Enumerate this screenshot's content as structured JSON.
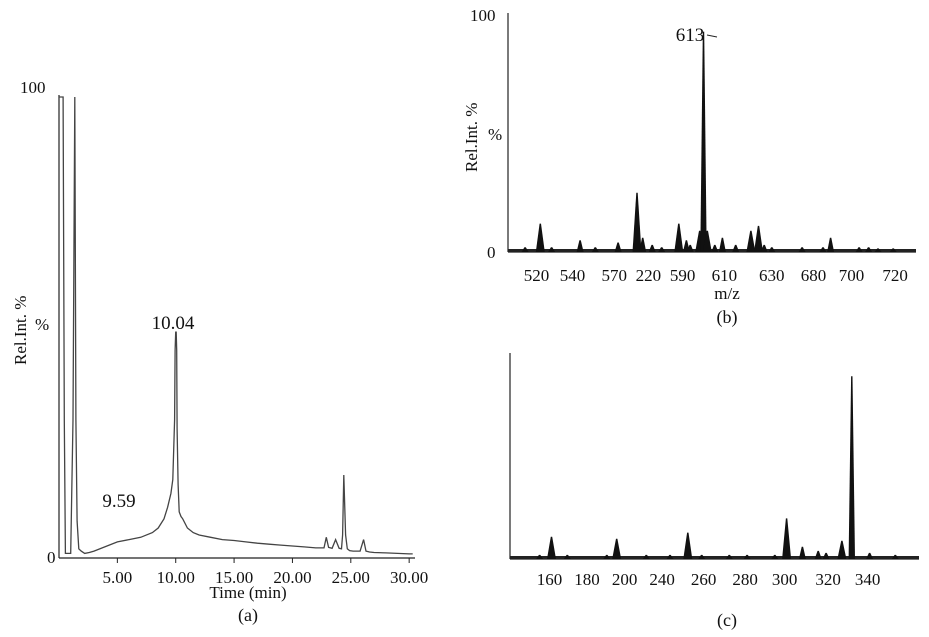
{
  "chart_data": [
    {
      "panel": "(a)",
      "type": "line",
      "xlabel": "Time (min)",
      "ylabel": "Rel.Int. %",
      "y_top_label": "100",
      "y_mid_label": "%",
      "y_zero_label": "0",
      "xlim": [
        0.0,
        30.5
      ],
      "ylim": [
        0,
        100
      ],
      "x_ticks": [
        "5.00",
        "10.00",
        "15.00",
        "20.00",
        "25.00",
        "30.00"
      ],
      "annotations": [
        {
          "text": "10.04",
          "x": 10.04,
          "y": 49
        },
        {
          "text": "9.59",
          "x": 9.59,
          "y": 14
        }
      ],
      "series": [
        {
          "x": [
            0.0,
            0.2,
            0.35,
            0.45,
            0.55,
            0.8,
            1.0,
            1.2,
            1.35,
            1.45,
            1.55,
            1.7,
            1.9,
            2.2,
            2.6,
            3.0,
            4.0,
            5.0,
            6.0,
            7.0,
            8.0,
            8.5,
            9.0,
            9.3,
            9.59,
            9.75,
            9.9,
            9.95,
            10.0,
            10.04,
            10.08,
            10.12,
            10.2,
            10.3,
            10.45,
            10.6,
            11.0,
            11.5,
            12.0,
            13.0,
            14.0,
            15.0,
            16.0,
            17.0,
            18.0,
            19.0,
            20.0,
            21.0,
            22.0,
            22.7,
            22.9,
            23.1,
            23.4,
            23.7,
            24.0,
            24.2,
            24.3,
            24.4,
            24.55,
            24.7,
            24.9,
            25.2,
            25.8,
            26.1,
            26.3,
            26.6,
            27.0,
            28.0,
            29.0,
            30.0,
            30.3
          ],
          "y": [
            100,
            100,
            100,
            30,
            1,
            1,
            1,
            30,
            100,
            30,
            8,
            2,
            1.5,
            1,
            1.2,
            1.5,
            2.5,
            3.5,
            4,
            4.5,
            5.5,
            6.5,
            8.5,
            11,
            14,
            17,
            30,
            45,
            49,
            49,
            45,
            28,
            16,
            10,
            9,
            8.5,
            6.5,
            5.5,
            5,
            4.5,
            4,
            3.8,
            3.5,
            3.2,
            3,
            2.8,
            2.6,
            2.4,
            2.2,
            2.2,
            4.5,
            2.3,
            2.1,
            4,
            2.1,
            2,
            5,
            18,
            5,
            2,
            1.6,
            1.5,
            1.5,
            4,
            1.5,
            1.3,
            1.2,
            1.1,
            1.0,
            0.9,
            0.9
          ]
        }
      ]
    },
    {
      "panel": "(b)",
      "type": "bar",
      "xlabel": "m/z",
      "ylabel": "Rel.Int. %",
      "y_top_label": "100",
      "y_mid_label": "%",
      "y_zero_label": "0",
      "ylim": [
        0,
        100
      ],
      "x_ticks": [
        "520",
        "540",
        "570",
        "220",
        "590",
        "610",
        "630",
        "680",
        "700",
        "720"
      ],
      "annotations": [
        {
          "text": "613",
          "x": 613,
          "y": 93
        }
      ],
      "peaks": {
        "x": [
          519,
          527,
          533,
          548,
          556,
          568,
          578,
          581,
          586,
          591,
          600,
          604,
          606,
          611,
          613,
          615,
          619,
          623,
          630,
          638,
          642,
          645,
          649,
          665,
          676,
          680,
          695,
          700,
          705,
          713
        ],
        "y": [
          2,
          12,
          2,
          5,
          2,
          4,
          25,
          6,
          3,
          2,
          12,
          5,
          3,
          9,
          93,
          9,
          3,
          6,
          3,
          9,
          11,
          3,
          2,
          2,
          2,
          6,
          2,
          2,
          1.5,
          1.5
        ]
      },
      "tick_axis_positions": [
        525,
        544,
        566,
        584,
        602,
        624,
        649,
        671,
        691,
        714
      ]
    },
    {
      "panel": "(c)",
      "type": "bar",
      "xlabel": "",
      "ylabel": "",
      "ylim": [
        0,
        100
      ],
      "x_ticks": [
        "160",
        "180",
        "200",
        "240",
        "260",
        "280",
        "300",
        "320",
        "340"
      ],
      "peaks": {
        "x": [
          160,
          166,
          174,
          194,
          199,
          214,
          226,
          235,
          242,
          256,
          265,
          279,
          285,
          293,
          301,
          305,
          313,
          318,
          327,
          340
        ],
        "y": [
          2,
          11,
          2,
          2,
          10,
          2,
          2,
          13,
          2,
          2,
          2,
          2,
          20,
          6,
          4,
          3,
          9,
          90,
          3,
          2
        ]
      },
      "tick_axis_positions": [
        165,
        184,
        203,
        222,
        243,
        264,
        284,
        306,
        326
      ]
    }
  ]
}
